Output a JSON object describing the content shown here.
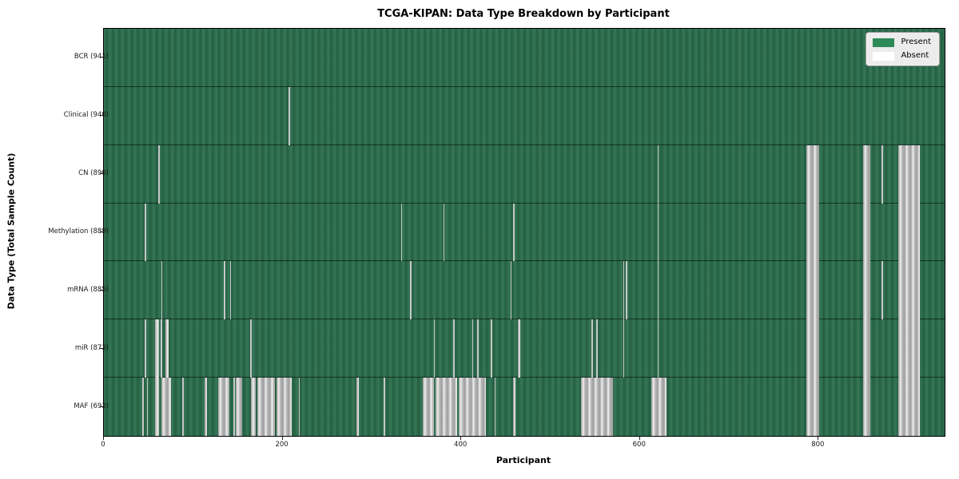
{
  "figure": {
    "title": "TCGA-KIPAN: Data Type Breakdown by Participant",
    "xlabel": "Participant",
    "ylabel": "Data Type (Total Sample Count)"
  },
  "legend": {
    "present_label": "Present",
    "absent_label": "Absent",
    "position": "upper right"
  },
  "colors": {
    "present_green": "#2e8b57",
    "present_fill_dark": "#255f42",
    "present_fill_light": "#377757",
    "absent_white": "#ffffff",
    "absent_gray": "#bdbdbd",
    "background": "#ffffff",
    "axis": "#000000"
  },
  "chart_data": {
    "type": "heatmap",
    "title": "TCGA-KIPAN: Data Type Breakdown by Participant",
    "xlabel": "Participant",
    "ylabel": "Data Type (Total Sample Count)",
    "x_range": [
      0,
      941
    ],
    "x_ticks": [
      0,
      200,
      400,
      600,
      800
    ],
    "grid": "row-separators",
    "legend": [
      "Present",
      "Absent"
    ],
    "legend_position": "upper right",
    "cell_values": {
      "present": 1,
      "absent": 0
    },
    "rows": [
      {
        "label": "BCR (941)",
        "data_type": "BCR",
        "present_count": 941,
        "absent_ranges": []
      },
      {
        "label": "Clinical (940)",
        "data_type": "Clinical",
        "present_count": 940,
        "absent_ranges": [
          [
            207,
            208.5
          ]
        ]
      },
      {
        "label": "CN (890)",
        "data_type": "CN",
        "present_count": 890,
        "absent_ranges": [
          [
            61,
            62.5
          ],
          [
            619.5,
            621
          ],
          [
            786,
            800.5
          ],
          [
            850,
            858
          ],
          [
            870.5,
            872
          ],
          [
            889,
            913
          ]
        ]
      },
      {
        "label": "Methylation (889)",
        "data_type": "Methylation",
        "present_count": 889,
        "absent_ranges": [
          [
            46,
            47.5
          ],
          [
            332.5,
            334
          ],
          [
            380,
            381.5
          ],
          [
            458,
            459.5
          ],
          [
            619.5,
            621
          ],
          [
            786,
            800.5
          ],
          [
            850,
            858
          ],
          [
            889,
            913
          ]
        ]
      },
      {
        "label": "mRNA (885)",
        "data_type": "mRNA",
        "present_count": 885,
        "absent_ranges": [
          [
            64,
            65.5
          ],
          [
            134.5,
            136
          ],
          [
            141,
            142.5
          ],
          [
            343,
            344.5
          ],
          [
            455,
            456.5
          ],
          [
            581,
            582.5
          ],
          [
            584,
            585.5
          ],
          [
            619.5,
            621
          ],
          [
            786,
            800.5
          ],
          [
            850,
            858
          ],
          [
            870.5,
            872
          ],
          [
            889,
            913
          ]
        ]
      },
      {
        "label": "miR (873)",
        "data_type": "miR",
        "present_count": 873,
        "absent_ranges": [
          [
            46,
            47.5
          ],
          [
            57,
            62
          ],
          [
            63.5,
            65.5
          ],
          [
            69,
            72.5
          ],
          [
            164,
            165.5
          ],
          [
            369,
            370.5
          ],
          [
            391,
            392.5
          ],
          [
            412,
            413.5
          ],
          [
            418,
            419.5
          ],
          [
            433,
            434.5
          ],
          [
            463,
            466
          ],
          [
            546,
            547.5
          ],
          [
            551,
            552.5
          ],
          [
            581,
            582.5
          ],
          [
            619.5,
            621
          ],
          [
            786,
            800.5
          ],
          [
            850,
            858
          ],
          [
            889,
            913
          ]
        ]
      },
      {
        "label": "MAF (693)",
        "data_type": "MAF",
        "present_count": 693,
        "absent_ranges": [
          [
            43,
            45
          ],
          [
            48,
            49.5
          ],
          [
            57,
            62
          ],
          [
            64,
            75
          ],
          [
            88,
            89.5
          ],
          [
            113,
            115.5
          ],
          [
            128,
            140
          ],
          [
            145,
            146.5
          ],
          [
            148,
            155
          ],
          [
            165,
            170
          ],
          [
            172,
            191
          ],
          [
            193,
            210
          ],
          [
            218,
            219.5
          ],
          [
            283,
            285.5
          ],
          [
            313,
            314.5
          ],
          [
            357,
            369
          ],
          [
            371,
            395
          ],
          [
            397,
            428
          ],
          [
            437,
            438.5
          ],
          [
            458,
            461
          ],
          [
            534,
            570
          ],
          [
            613,
            630
          ],
          [
            786,
            800.5
          ],
          [
            850,
            858
          ],
          [
            889,
            913
          ]
        ]
      }
    ]
  }
}
